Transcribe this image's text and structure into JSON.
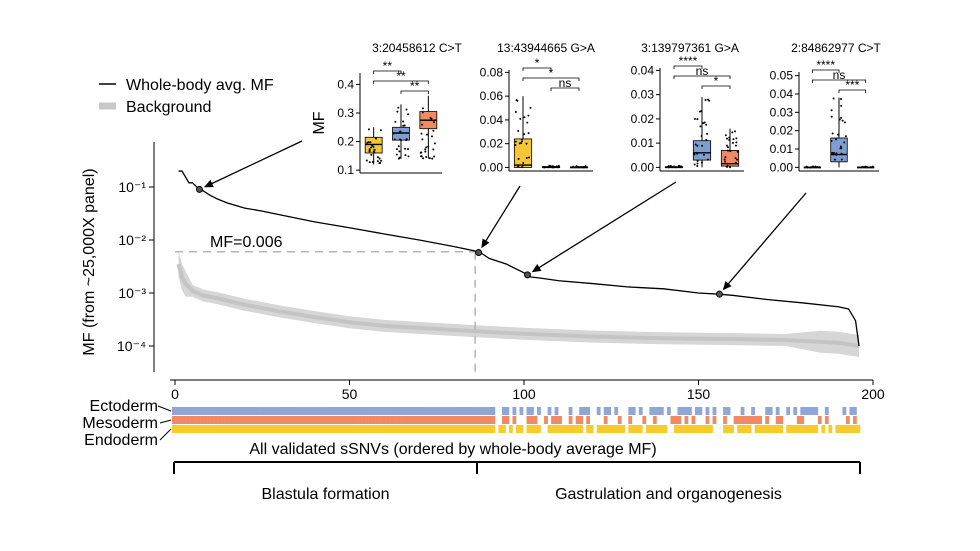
{
  "chart_data": {
    "type": "line",
    "main": {
      "ylabel": "MF (from ~25,000X panel)",
      "y_scale": "log",
      "yticks": [
        "10⁻¹",
        "10⁻²",
        "10⁻³",
        "10⁻⁴"
      ],
      "yticks_values": [
        0.1,
        0.01,
        0.001,
        0.0001
      ],
      "xticks": [
        "0",
        "50",
        "100",
        "150",
        "200"
      ],
      "xticks_values": [
        0,
        50,
        100,
        150,
        200
      ],
      "xlim": [
        -2,
        204
      ],
      "ylim_log10": [
        -4.3,
        -0.65
      ],
      "legend": {
        "placement": "top-left",
        "entries": [
          "Whole-body avg. MF",
          "Background"
        ]
      },
      "threshold_label": "MF=0.006",
      "threshold_mf": 0.006,
      "threshold_rank": 86,
      "series": [
        {
          "name": "Whole-body avg. MF",
          "x": [
            1,
            2,
            4,
            5,
            7,
            8,
            10,
            12,
            15,
            20,
            25,
            30,
            40,
            50,
            60,
            70,
            80,
            86,
            88,
            90,
            95,
            100,
            101,
            102,
            105,
            110,
            120,
            130,
            140,
            150,
            156,
            160,
            170,
            180,
            190,
            193,
            195,
            196
          ],
          "values": [
            0.2,
            0.2,
            0.12,
            0.12,
            0.09,
            0.085,
            0.07,
            0.06,
            0.05,
            0.04,
            0.035,
            0.03,
            0.022,
            0.017,
            0.013,
            0.01,
            0.0075,
            0.0062,
            0.0055,
            0.0045,
            0.0035,
            0.0024,
            0.0022,
            0.002,
            0.0019,
            0.0017,
            0.0015,
            0.0013,
            0.0012,
            0.001,
            0.00095,
            0.0009,
            0.00075,
            0.00065,
            0.00055,
            0.0005,
            0.0003,
            0.0001
          ]
        },
        {
          "name": "Background",
          "x": [
            1,
            2,
            3,
            5,
            8,
            12,
            20,
            30,
            40,
            50,
            60,
            80,
            100,
            120,
            140,
            160,
            175,
            185,
            190,
            196
          ],
          "values": [
            0.0035,
            0.002,
            0.0015,
            0.0011,
            0.0009,
            0.0008,
            0.0006,
            0.00045,
            0.00035,
            0.00028,
            0.00024,
            0.0002,
            0.00017,
            0.00015,
            0.00014,
            0.000135,
            0.00013,
            0.00012,
            0.000115,
            0.0001
          ],
          "ribbon": true
        }
      ],
      "highlighted": [
        {
          "x": 7,
          "mf": 0.09,
          "locus": "3:20458612 C>T"
        },
        {
          "x": 87,
          "mf": 0.0058,
          "locus": "13:43944665 G>A"
        },
        {
          "x": 101,
          "mf": 0.0022,
          "locus": "3:139797361 G>A"
        },
        {
          "x": 156,
          "mf": 0.00095,
          "locus": "2:84862977 C>T"
        }
      ]
    },
    "insets": [
      {
        "type": "box",
        "title": "3:20458612 C>T",
        "ylabel": "MF",
        "yticks": [
          "0.1",
          "0.2",
          "0.3",
          "0.4"
        ],
        "yticks_values": [
          0.1,
          0.2,
          0.3,
          0.4
        ],
        "ylim": [
          0.09,
          0.44
        ],
        "groups": [
          "Endoderm",
          "Mesoderm",
          "Ectoderm"
        ],
        "colors": [
          "#f5c638",
          "#7e9ed1",
          "#f08a64"
        ],
        "boxes": [
          {
            "q1": 0.16,
            "median": 0.19,
            "q3": 0.215,
            "lo": 0.12,
            "hi": 0.25
          },
          {
            "q1": 0.205,
            "median": 0.23,
            "q3": 0.25,
            "lo": 0.14,
            "hi": 0.33
          },
          {
            "q1": 0.245,
            "median": 0.275,
            "q3": 0.305,
            "lo": 0.14,
            "hi": 0.36
          }
        ],
        "brackets": [
          {
            "from": 0,
            "to": 1,
            "label": "**"
          },
          {
            "from": 0,
            "to": 2,
            "label": "**"
          },
          {
            "from": 1,
            "to": 2,
            "label": "**"
          }
        ]
      },
      {
        "type": "box",
        "title": "13:43944665 G>A",
        "yticks": [
          "0.00",
          "0.02",
          "0.04",
          "0.06",
          "0.08"
        ],
        "yticks_values": [
          0,
          0.02,
          0.04,
          0.06,
          0.08
        ],
        "ylim": [
          -0.003,
          0.082
        ],
        "groups": [
          "Endoderm",
          "Mesoderm",
          "Ectoderm"
        ],
        "colors": [
          "#f5c638",
          "#7e9ed1",
          "#f08a64"
        ],
        "boxes": [
          {
            "q1": 0.0,
            "median": 0.002,
            "q3": 0.024,
            "lo": 0.0,
            "hi": 0.06
          },
          {
            "q1": 0.0,
            "median": 0.0,
            "q3": 0.0008,
            "lo": 0.0,
            "hi": 0.002
          },
          {
            "q1": 0.0,
            "median": 0.0,
            "q3": 0.0005,
            "lo": 0.0,
            "hi": 0.001
          }
        ],
        "brackets": [
          {
            "from": 0,
            "to": 1,
            "label": "*"
          },
          {
            "from": 0,
            "to": 2,
            "label": "*"
          },
          {
            "from": 1,
            "to": 2,
            "label": "ns"
          }
        ]
      },
      {
        "type": "box",
        "title": "3:139797361 G>A",
        "yticks": [
          "0.00",
          "0.01",
          "0.02",
          "0.03",
          "0.04"
        ],
        "yticks_values": [
          0,
          0.01,
          0.02,
          0.03,
          0.04
        ],
        "ylim": [
          -0.0015,
          0.041
        ],
        "groups": [
          "Endoderm",
          "Mesoderm",
          "Ectoderm"
        ],
        "colors": [
          "#f5c638",
          "#7e9ed1",
          "#f08a64"
        ],
        "boxes": [
          {
            "q1": 0.0,
            "median": 0.0,
            "q3": 0.0003,
            "lo": 0.0,
            "hi": 0.0008
          },
          {
            "q1": 0.003,
            "median": 0.006,
            "q3": 0.011,
            "lo": 0.0,
            "hi": 0.029
          },
          {
            "q1": 0.0005,
            "median": 0.0015,
            "q3": 0.007,
            "lo": 0.0,
            "hi": 0.016
          }
        ],
        "brackets": [
          {
            "from": 0,
            "to": 1,
            "label": "****"
          },
          {
            "from": 0,
            "to": 2,
            "label": "ns"
          },
          {
            "from": 1,
            "to": 2,
            "label": "*"
          }
        ]
      },
      {
        "type": "box",
        "title": "2:84862977 C>T",
        "yticks": [
          "0.00",
          "0.01",
          "0.02",
          "0.03",
          "0.04",
          "0.05"
        ],
        "yticks_values": [
          0,
          0.01,
          0.02,
          0.03,
          0.04,
          0.05
        ],
        "ylim": [
          -0.002,
          0.052
        ],
        "groups": [
          "Endoderm",
          "Mesoderm",
          "Ectoderm"
        ],
        "colors": [
          "#f5c638",
          "#7e9ed1",
          "#f08a64"
        ],
        "boxes": [
          {
            "q1": 0.0,
            "median": 0.0,
            "q3": 0.0002,
            "lo": 0.0,
            "hi": 0.0005
          },
          {
            "q1": 0.003,
            "median": 0.007,
            "q3": 0.016,
            "lo": 0.0,
            "hi": 0.038
          },
          {
            "q1": 0.0,
            "median": 0.0,
            "q3": 0.0002,
            "lo": 0.0,
            "hi": 0.0005
          }
        ],
        "brackets": [
          {
            "from": 0,
            "to": 1,
            "label": "****"
          },
          {
            "from": 0,
            "to": 2,
            "label": "ns"
          },
          {
            "from": 1,
            "to": 2,
            "label": "***"
          }
        ]
      }
    ],
    "tracks": {
      "rows": [
        "Ectoderm",
        "Mesoderm",
        "Endoderm"
      ],
      "colors": {
        "Ectoderm": "#8fa6d6",
        "Mesoderm": "#f08a64",
        "Endoderm": "#f5cc2a"
      },
      "caption": "All validated sSNVs (ordered by whole-body average MF)",
      "present_all_until": 92
    },
    "stages": [
      {
        "label": "Blastula formation",
        "from": 0,
        "to": 87
      },
      {
        "label": "Gastrulation and organogenesis",
        "from": 87,
        "to": 196
      }
    ]
  }
}
